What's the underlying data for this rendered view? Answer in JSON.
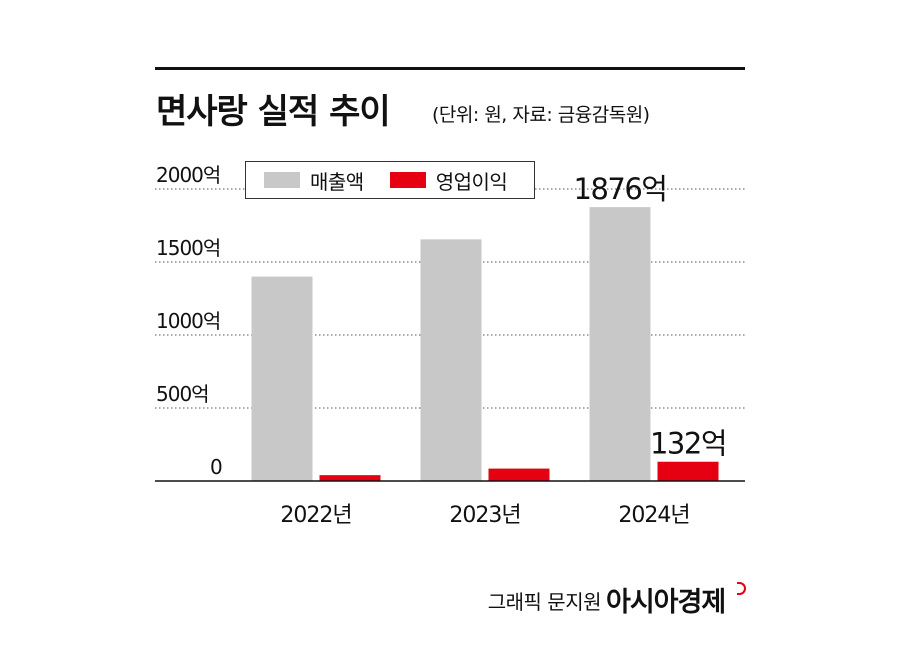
{
  "header": {
    "title": "면사랑 실적 추이",
    "subtitle": "(단위: 원, 자료: 금융감독원)"
  },
  "legend": [
    {
      "label": "매출액",
      "color": "#c8c8c8"
    },
    {
      "label": "영업이익",
      "color": "#e50012"
    }
  ],
  "footer": {
    "credit": "그래픽 문지원",
    "brand": "아시아경제"
  },
  "chart_data": {
    "type": "bar",
    "categories": [
      "2022년",
      "2023년",
      "2024년"
    ],
    "series": [
      {
        "name": "매출액",
        "color": "#c8c8c8",
        "values": [
          1400,
          1655,
          1876
        ]
      },
      {
        "name": "영업이익",
        "color": "#e50012",
        "values": [
          40,
          85,
          132
        ]
      }
    ],
    "data_labels": [
      {
        "series": 0,
        "index": 2,
        "text": "1876억"
      },
      {
        "series": 1,
        "index": 2,
        "text": "132억"
      }
    ],
    "y_ticks": [
      {
        "value": 0,
        "label": "0"
      },
      {
        "value": 500,
        "label": "500억"
      },
      {
        "value": 1000,
        "label": "1000억"
      },
      {
        "value": 1500,
        "label": "1500억"
      },
      {
        "value": 2000,
        "label": "2000억"
      }
    ],
    "ylim": [
      0,
      2000
    ],
    "grid": true,
    "legend_position": "top-left"
  }
}
